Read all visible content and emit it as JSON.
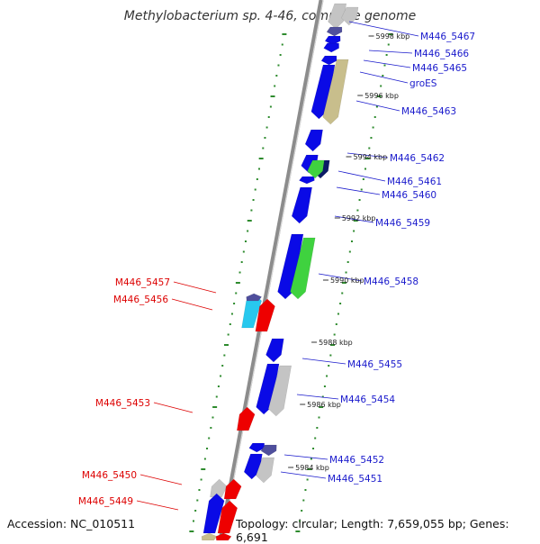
{
  "header": {
    "title": "Methylobacterium sp. 4-46, complete genome"
  },
  "footer": {
    "accession": "Accession: NC_010511",
    "topology": "Topology: circular; Length: 7,659,055 bp; Genes: 6,691"
  },
  "colors": {
    "backbone": "#8c8c8c",
    "tick_dots": "#2e8b2e",
    "label_forward": "#1a1acc",
    "label_reverse": "#dd0000",
    "gene_blue": "#0a0ae6",
    "gene_red": "#ee0000",
    "gene_grey": "#c4c4c4",
    "gene_khaki": "#c8be8c",
    "gene_green": "#3fd23f",
    "gene_cyan": "#28c8ee",
    "gene_slate": "#4f4f9c",
    "gene_navy": "#0b1a66"
  },
  "scale_labels": [
    "5998 kbp",
    "5996 kbp",
    "5994 kbp",
    "5992 kbp",
    "5990 kbp",
    "5988 kbp",
    "5986 kbp",
    "5984 kbp"
  ],
  "forward_labels": [
    "M446_5467",
    "M446_5466",
    "M446_5465",
    "groES",
    "M446_5463",
    "M446_5462",
    "M446_5461",
    "M446_5460",
    "M446_5459",
    "M446_5458",
    "M446_5455",
    "M446_5454",
    "M446_5452",
    "M446_5451"
  ],
  "reverse_labels": [
    "M446_5457",
    "M446_5456",
    "M446_5453",
    "M446_5450",
    "M446_5449"
  ]
}
